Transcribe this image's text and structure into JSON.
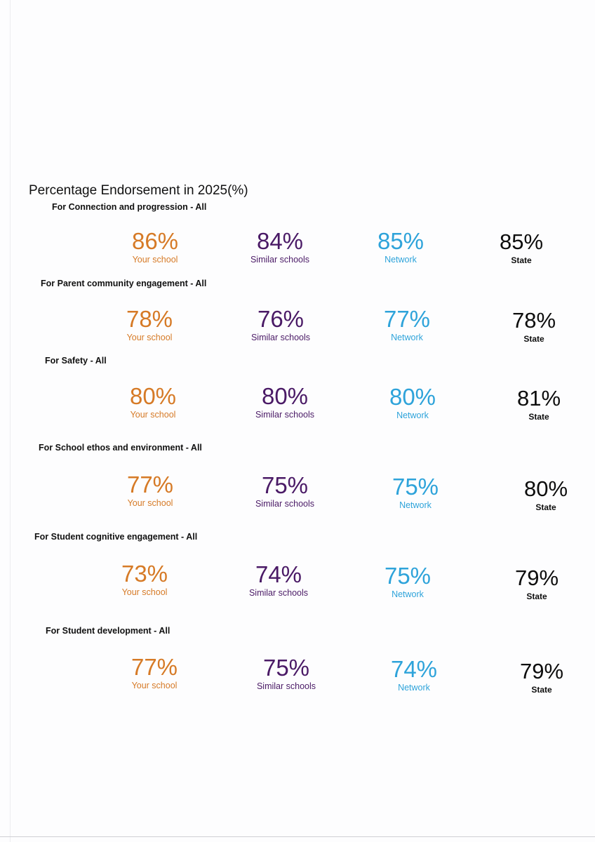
{
  "title": "Percentage Endorsement in 2025(%)",
  "colors": {
    "your_school": "#d67a26",
    "similar_schools": "#4a1a66",
    "network": "#2ea3da",
    "state": "#0d0d0d"
  },
  "sections": [
    {
      "heading": "For Connection and progression - All",
      "stats": [
        {
          "value": "86%",
          "label": "Your school"
        },
        {
          "value": "84%",
          "label": "Similar schools"
        },
        {
          "value": "85%",
          "label": "Network"
        },
        {
          "value": "85%",
          "label": "State"
        }
      ]
    },
    {
      "heading": "For Parent community engagement - All",
      "stats": [
        {
          "value": "78%",
          "label": "Your school"
        },
        {
          "value": "76%",
          "label": "Similar schools"
        },
        {
          "value": "77%",
          "label": "Network"
        },
        {
          "value": "78%",
          "label": "State"
        }
      ]
    },
    {
      "heading": "For Safety - All",
      "stats": [
        {
          "value": "80%",
          "label": "Your school"
        },
        {
          "value": "80%",
          "label": "Similar schools"
        },
        {
          "value": "80%",
          "label": "Network"
        },
        {
          "value": "81%",
          "label": "State"
        }
      ]
    },
    {
      "heading": "For School ethos and environment - All",
      "stats": [
        {
          "value": "77%",
          "label": "Your school"
        },
        {
          "value": "75%",
          "label": "Similar schools"
        },
        {
          "value": "75%",
          "label": "Network"
        },
        {
          "value": "80%",
          "label": "State"
        }
      ]
    },
    {
      "heading": "For Student cognitive engagement - All",
      "stats": [
        {
          "value": "73%",
          "label": "Your school"
        },
        {
          "value": "74%",
          "label": "Similar schools"
        },
        {
          "value": "75%",
          "label": "Network"
        },
        {
          "value": "79%",
          "label": "State"
        }
      ]
    },
    {
      "heading": "For Student development - All",
      "stats": [
        {
          "value": "77%",
          "label": "Your school"
        },
        {
          "value": "75%",
          "label": "Similar schools"
        },
        {
          "value": "74%",
          "label": "Network"
        },
        {
          "value": "79%",
          "label": "State"
        }
      ]
    }
  ]
}
